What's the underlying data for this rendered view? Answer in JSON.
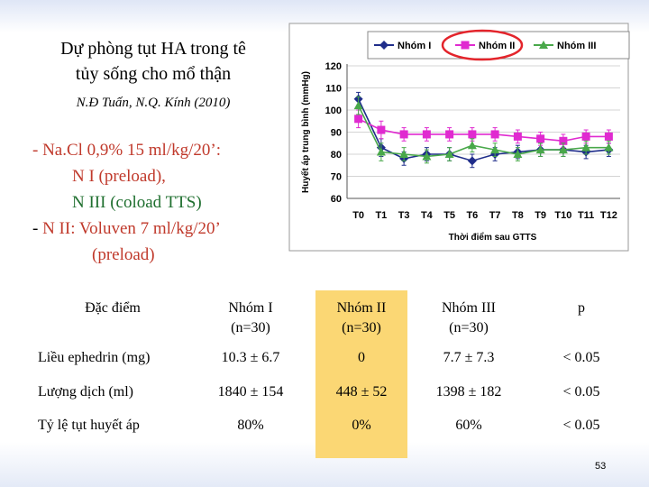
{
  "slide": {
    "title_line1": "Dự phòng tụt HA trong tê",
    "title_line2": "tủy sống cho mổ thận",
    "citation": "N.Đ Tuấn, N.Q. Kính (2010)",
    "notes": {
      "l1": "- Na.Cl 0,9% 15 ml/kg/20’:",
      "l2": "N I (preload),",
      "l3": "N III (coload TTS)",
      "l4_prefix": "- ",
      "l4": "N II: Voluven 7 ml/kg/20’",
      "l5": "(preload)"
    },
    "page_number": "53"
  },
  "chart_data": {
    "type": "line",
    "ylabel": "Huyết áp trung bình (mmHg)",
    "xlabel": "Thời điểm sau GTTS",
    "categories": [
      "T0",
      "T1",
      "T3",
      "T4",
      "T5",
      "T6",
      "T7",
      "T8",
      "T9",
      "T10",
      "T11",
      "T12"
    ],
    "ylim": [
      60,
      120
    ],
    "yticks": [
      60,
      70,
      80,
      90,
      100,
      110,
      120
    ],
    "grid": true,
    "legend_position": "top",
    "series": [
      {
        "name": "Nhóm I",
        "color": "#1f2d8a",
        "marker": "diamond",
        "values": [
          105,
          83,
          78,
          80,
          80,
          77,
          80,
          81,
          82,
          82,
          81,
          82
        ],
        "err": [
          3,
          4,
          3,
          3,
          3,
          3,
          3,
          3,
          3,
          3,
          3,
          3
        ]
      },
      {
        "name": "Nhóm II",
        "color": "#e02ad0",
        "marker": "square",
        "values": [
          96,
          91,
          89,
          89,
          89,
          89,
          89,
          88,
          87,
          86,
          88,
          88
        ],
        "err": [
          4,
          4,
          3,
          3,
          3,
          3,
          3,
          3,
          3,
          3,
          3,
          3
        ]
      },
      {
        "name": "Nhóm III",
        "color": "#49a84a",
        "marker": "triangle",
        "values": [
          102,
          81,
          80,
          79,
          80,
          84,
          82,
          80,
          82,
          82,
          83,
          83
        ],
        "err": [
          4,
          4,
          3,
          3,
          3,
          3,
          3,
          3,
          3,
          3,
          3,
          3
        ]
      }
    ]
  },
  "table": {
    "headers": {
      "c0": "Đặc điểm",
      "c1a": "Nhóm I",
      "c1b": "(n=30)",
      "c2a": "Nhóm II",
      "c2b": "(n=30)",
      "c3a": "Nhóm III",
      "c3b": "(n=30)",
      "c4": "p"
    },
    "rows": [
      {
        "label": "Liều ephedrin (mg)",
        "g1": "10.3 ± 6.7",
        "g2": "0",
        "g3": "7.7 ± 7.3",
        "p": "< 0.05"
      },
      {
        "label": "Lượng dịch (ml)",
        "g1": "1840 ± 154",
        "g2": "448 ± 52",
        "g3": "1398 ± 182",
        "p": "< 0.05"
      },
      {
        "label": "Tỷ lệ tụt huyết áp",
        "g1": "80%",
        "g2": "0%",
        "g3": "60%",
        "p": "< 0.05"
      }
    ],
    "highlight_color": "#fbd774"
  }
}
